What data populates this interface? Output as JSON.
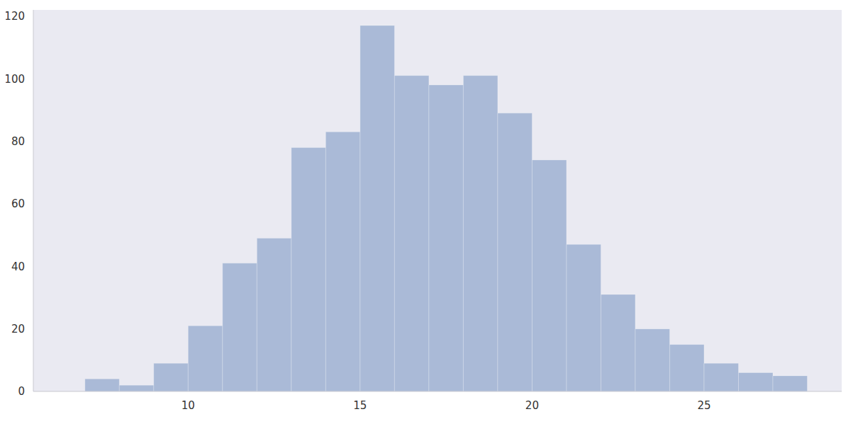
{
  "chart_data": {
    "type": "histogram",
    "bins": [
      7,
      8,
      9,
      10,
      11,
      12,
      13,
      14,
      15,
      16,
      17,
      18,
      19,
      20,
      21,
      22,
      23,
      24,
      25,
      26,
      27,
      28
    ],
    "counts": [
      4,
      2,
      9,
      21,
      41,
      49,
      78,
      83,
      117,
      101,
      98,
      101,
      89,
      74,
      47,
      31,
      20,
      15,
      9,
      6,
      5
    ],
    "color": "#4c72b0",
    "xlim": [
      5.5,
      29
    ],
    "ylim": [
      0,
      122
    ],
    "xticks": [
      10,
      15,
      20,
      25
    ],
    "yticks": [
      0,
      20,
      40,
      60,
      80,
      100,
      120
    ],
    "grid": false
  }
}
